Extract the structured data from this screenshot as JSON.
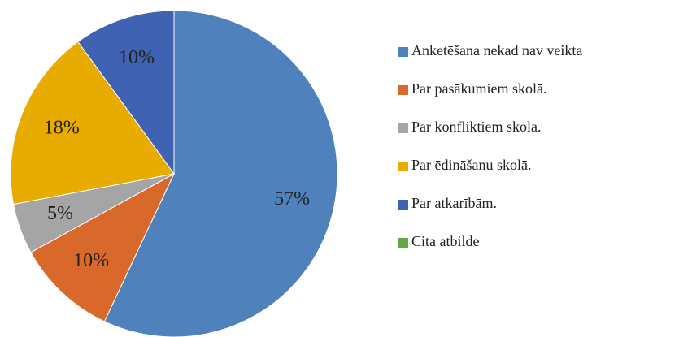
{
  "chart_data": {
    "type": "pie",
    "categories": [
      "Anketēšana nekad nav veikta",
      "Par pasākumiem skolā.",
      "Par konfliktiem skolā.",
      "Par ēdināšanu skolā.",
      "Par atkarībām.",
      "Cita atbilde"
    ],
    "values": [
      57,
      10,
      5,
      18,
      10,
      0
    ],
    "value_labels": [
      "57%",
      "10%",
      "5%",
      "18%",
      "10%",
      null
    ],
    "colors": [
      "#4f81bd",
      "#d9692a",
      "#a5a5a5",
      "#e8ac00",
      "#3f63b2",
      "#5ea845"
    ],
    "legend": "right"
  }
}
